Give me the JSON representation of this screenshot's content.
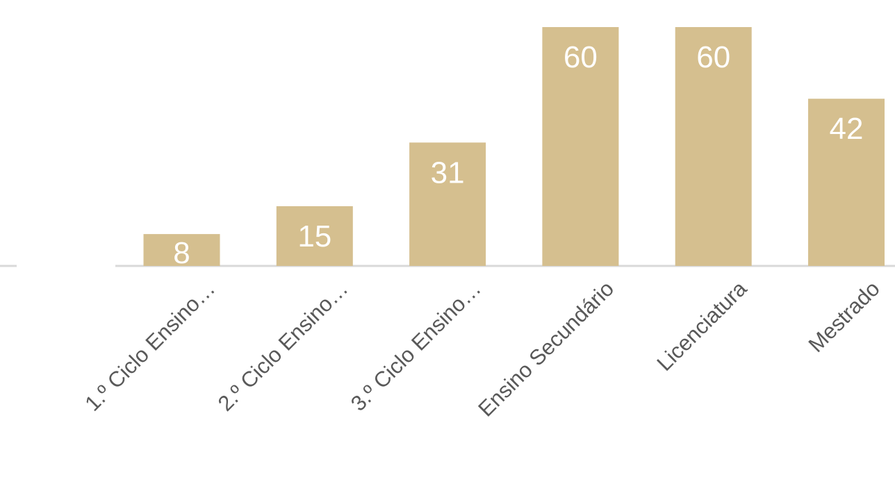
{
  "chart_data": {
    "type": "bar",
    "title": "",
    "xlabel": "",
    "ylabel": "",
    "categories": [
      "1.º Ciclo Ensino…",
      "2.º Ciclo Ensino…",
      "3.º Ciclo Ensino…",
      "Ensino Secundário",
      "Licenciatura",
      "Mestrado"
    ],
    "values": [
      8,
      15,
      31,
      60,
      60,
      42
    ],
    "ylim": [
      0,
      60
    ],
    "grid": false,
    "legend": "none",
    "show_data_labels": true
  },
  "colors": {
    "bar": "#d5bf8f",
    "data_label": "#ffffff",
    "axis_line": "#d9d9d9",
    "tick_label": "#595959"
  }
}
